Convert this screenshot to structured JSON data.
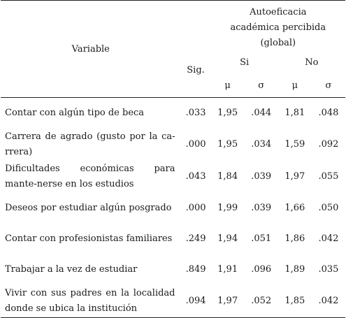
{
  "header": {
    "variable_label": "Variable",
    "group_label": "Autoeficacia académica percibida (global)",
    "sig_label": "Sig.",
    "si_label": "Si",
    "no_label": "No",
    "mu_label": "μ",
    "sigma_label": "σ"
  },
  "rows": [
    {
      "variable": "Contar con algún tipo de beca",
      "sig": ".033",
      "si_mu": "1,95",
      "si_sigma": ".044",
      "no_mu": "1,81",
      "no_sigma": ".048"
    },
    {
      "variable": "Carrera de agrado (gusto por la ca-rrera)",
      "sig": ".000",
      "si_mu": "1,95",
      "si_sigma": ".034",
      "no_mu": "1,59",
      "no_sigma": ".092"
    },
    {
      "variable": "Dificultades económicas para mante-nerse en los estudios",
      "sig": ".043",
      "si_mu": "1,84",
      "si_sigma": ".039",
      "no_mu": "1,97",
      "no_sigma": ".055"
    },
    {
      "variable": "Deseos por estudiar algún posgrado",
      "sig": ".000",
      "si_mu": "1,99",
      "si_sigma": ".039",
      "no_mu": "1,66",
      "no_sigma": ".050"
    },
    {
      "variable": "Contar con profesionistas familiares",
      "sig": ".249",
      "si_mu": "1,94",
      "si_sigma": ".051",
      "no_mu": "1,86",
      "no_sigma": ".042"
    },
    {
      "variable": "Trabajar a la vez de estudiar",
      "sig": ".849",
      "si_mu": "1,91",
      "si_sigma": ".096",
      "no_mu": "1,89",
      "no_sigma": ".035"
    },
    {
      "variable": "Vivir con sus padres en la localidad donde se ubica la institución",
      "sig": ".094",
      "si_mu": "1,97",
      "si_sigma": ".052",
      "no_mu": "1,85",
      "no_sigma": ".042"
    }
  ]
}
